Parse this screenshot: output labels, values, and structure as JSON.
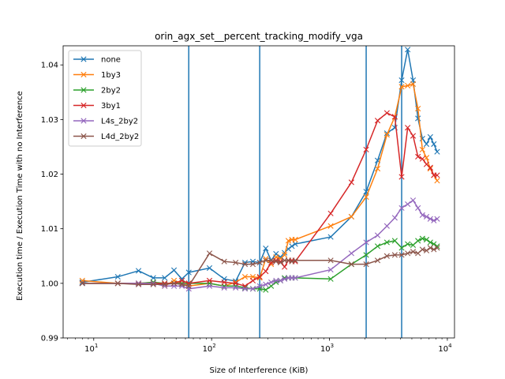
{
  "chart_data": {
    "type": "line",
    "title": "orin_agx_set__percent_tracking_modify_vga",
    "xlabel": "Size of Interference (KiB)",
    "ylabel": "Execution time / Execution Time with no Interference",
    "xscale": "log",
    "xlim": [
      5.5,
      11500
    ],
    "ylim": [
      0.99,
      1.0435
    ],
    "y_ticks": [
      0.99,
      1.0,
      1.01,
      1.02,
      1.03,
      1.04
    ],
    "y_tick_labels": [
      "0.99",
      "1.00",
      "1.01",
      "1.02",
      "1.03",
      "1.04"
    ],
    "x_ticks": [
      10,
      100,
      1000,
      10000
    ],
    "x_tick_labels": [
      {
        "base": "10",
        "exp": "1"
      },
      {
        "base": "10",
        "exp": "2"
      },
      {
        "base": "10",
        "exp": "3"
      },
      {
        "base": "10",
        "exp": "4"
      }
    ],
    "vlines": [
      64,
      256,
      2048,
      4096
    ],
    "vline_color": "#1f77b4",
    "legend_position": "upper-left",
    "marker": "x",
    "x": [
      8,
      16,
      24,
      32,
      40,
      48,
      56,
      64,
      96,
      128,
      160,
      192,
      224,
      256,
      288,
      320,
      352,
      384,
      416,
      448,
      480,
      512,
      1024,
      1536,
      2048,
      2560,
      3072,
      3584,
      4096,
      4608,
      5120,
      5632,
      6144,
      6656,
      7168,
      7680,
      8192
    ],
    "series": [
      {
        "name": "none",
        "color": "#1f77b4",
        "values": [
          1.0002,
          1.0012,
          1.0023,
          1.001,
          1.001,
          1.0024,
          1.0008,
          1.002,
          1.0028,
          1.0008,
          1.0004,
          1.0038,
          1.004,
          1.0038,
          1.0064,
          1.0042,
          1.0054,
          1.0048,
          1.0056,
          1.0063,
          1.0068,
          1.0072,
          1.0085,
          1.0122,
          1.0168,
          1.0225,
          1.0275,
          1.0285,
          1.0372,
          1.0428,
          1.0372,
          1.0302,
          1.0265,
          1.0255,
          1.0268,
          1.0255,
          1.0241
        ]
      },
      {
        "name": "1by3",
        "color": "#ff7f0e",
        "values": [
          1.0005,
          1.0,
          1.0,
          1.0002,
          0.9995,
          1.0005,
          1.0,
          0.9995,
          1.0,
          0.9995,
          1.0002,
          1.0012,
          1.0012,
          1.001,
          1.0045,
          1.0035,
          1.0048,
          1.0045,
          1.0052,
          1.0078,
          1.008,
          1.008,
          1.0105,
          1.0122,
          1.0158,
          1.021,
          1.0272,
          1.0305,
          1.036,
          1.0362,
          1.0365,
          1.032,
          1.0245,
          1.023,
          1.021,
          1.0198,
          1.0188
        ]
      },
      {
        "name": "2by2",
        "color": "#2ca02c",
        "values": [
          1.0,
          1.0,
          1.0,
          1.0002,
          1.0,
          1.0,
          1.0,
          1.0,
          1.0,
          0.9995,
          0.9995,
          0.9992,
          0.999,
          0.999,
          0.9988,
          0.9995,
          1.0002,
          1.0005,
          1.001,
          1.001,
          1.001,
          1.001,
          1.0008,
          1.0035,
          1.0052,
          1.0068,
          1.0075,
          1.0078,
          1.0065,
          1.0072,
          1.007,
          1.0078,
          1.0082,
          1.008,
          1.0075,
          1.0072,
          1.0068
        ]
      },
      {
        "name": "3by1",
        "color": "#d62728",
        "values": [
          1.0,
          1.0,
          1.0,
          1.0,
          1.0,
          1.0,
          1.0005,
          1.0,
          1.0005,
          1.0002,
          1.0,
          0.9995,
          1.0005,
          1.0012,
          1.0022,
          1.0038,
          1.0042,
          1.004,
          1.003,
          1.0042,
          1.0042,
          1.004,
          1.0128,
          1.0185,
          1.0245,
          1.0298,
          1.0312,
          1.0305,
          1.0195,
          1.0285,
          1.027,
          1.0232,
          1.0228,
          1.0218,
          1.0212,
          1.0198,
          1.0198
        ]
      },
      {
        "name": "L4s_2by2",
        "color": "#9467bd",
        "values": [
          1.0,
          1.0,
          1.0,
          1.0,
          0.9995,
          0.9995,
          0.9995,
          0.999,
          0.9995,
          0.9992,
          0.9992,
          0.999,
          0.999,
          0.9995,
          0.9998,
          1.0002,
          1.0005,
          1.0005,
          1.0008,
          1.001,
          1.001,
          1.001,
          1.0025,
          1.0055,
          1.0075,
          1.0088,
          1.0105,
          1.012,
          1.0138,
          1.0145,
          1.0152,
          1.0138,
          1.0125,
          1.0122,
          1.0118,
          1.0115,
          1.0118
        ]
      },
      {
        "name": "L4d_2by2",
        "color": "#8c564b",
        "values": [
          1.0,
          1.0,
          0.9998,
          0.9998,
          0.9998,
          1.0,
          0.9998,
          0.9995,
          1.0055,
          1.004,
          1.0038,
          1.0035,
          1.0035,
          1.0038,
          1.0042,
          1.0042,
          1.004,
          1.0038,
          1.0042,
          1.0042,
          1.004,
          1.0042,
          1.0042,
          1.0035,
          1.0035,
          1.0042,
          1.005,
          1.0052,
          1.0052,
          1.0055,
          1.0058,
          1.0055,
          1.0062,
          1.006,
          1.0065,
          1.0062,
          1.0065
        ]
      }
    ]
  }
}
